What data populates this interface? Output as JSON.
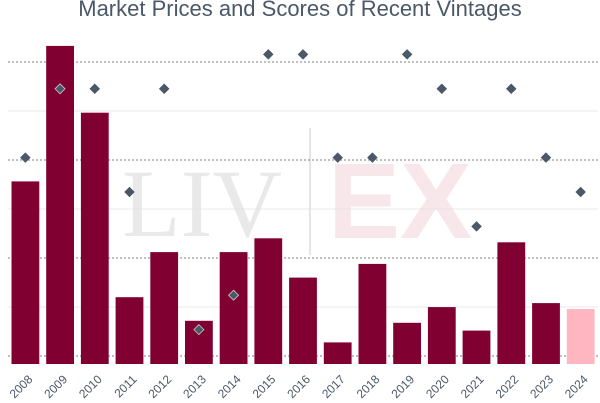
{
  "chart_data": {
    "type": "bar",
    "title": "Market Prices and Scores of Recent Vintages",
    "watermark": [
      "LIV",
      "EX"
    ],
    "categories": [
      "2008",
      "2009",
      "2010",
      "2011",
      "2012",
      "2013",
      "2014",
      "2015",
      "2016",
      "2017",
      "2018",
      "2019",
      "2020",
      "2021",
      "2022",
      "2023",
      "2024"
    ],
    "series": [
      {
        "kind": "bar",
        "values": [
          93,
          162,
          128,
          34,
          57,
          22,
          57,
          64,
          44,
          11,
          51,
          21,
          29,
          17,
          62,
          31,
          28
        ],
        "colors": [
          "#800032",
          "#800032",
          "#800032",
          "#800032",
          "#800032",
          "#800032",
          "#800032",
          "#800032",
          "#800032",
          "#800032",
          "#800032",
          "#800032",
          "#800032",
          "#800032",
          "#800032",
          "#800032",
          "#ffb6c1"
        ]
      },
      {
        "kind": "scatter",
        "marker": "diamond",
        "values": [
          96,
          98,
          98,
          95,
          98,
          91,
          92,
          99,
          99,
          96,
          96,
          99,
          98,
          94,
          98,
          96,
          95
        ]
      }
    ],
    "bar_ylim": [
      0,
      165
    ],
    "score_ylim": [
      90,
      100
    ],
    "grid": "horizontal-dashed",
    "legend": "none",
    "colors": {
      "bar": "#800032",
      "bar_highlight": "#ffb6c1",
      "marker": "#4a5868"
    }
  }
}
